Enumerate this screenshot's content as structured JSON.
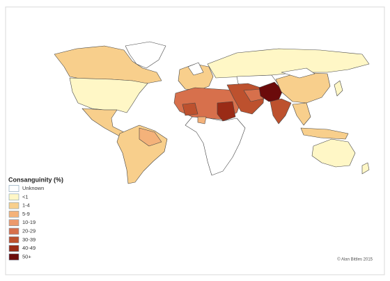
{
  "legend": {
    "title": "Consanguinity (%)",
    "items": [
      {
        "label": "Unknown",
        "color": "#ffffff"
      },
      {
        "label": "<1",
        "color": "#fff7c6"
      },
      {
        "label": "1-4",
        "color": "#f8cf8c"
      },
      {
        "label": "5-9",
        "color": "#f4b27a"
      },
      {
        "label": "10-19",
        "color": "#ec996c"
      },
      {
        "label": "20-29",
        "color": "#d7704c"
      },
      {
        "label": "30-39",
        "color": "#bd512e"
      },
      {
        "label": "40-49",
        "color": "#9a2b16"
      },
      {
        "label": "50+",
        "color": "#6b0b0b"
      }
    ]
  },
  "credit": "© Alan Bittles 2015"
}
